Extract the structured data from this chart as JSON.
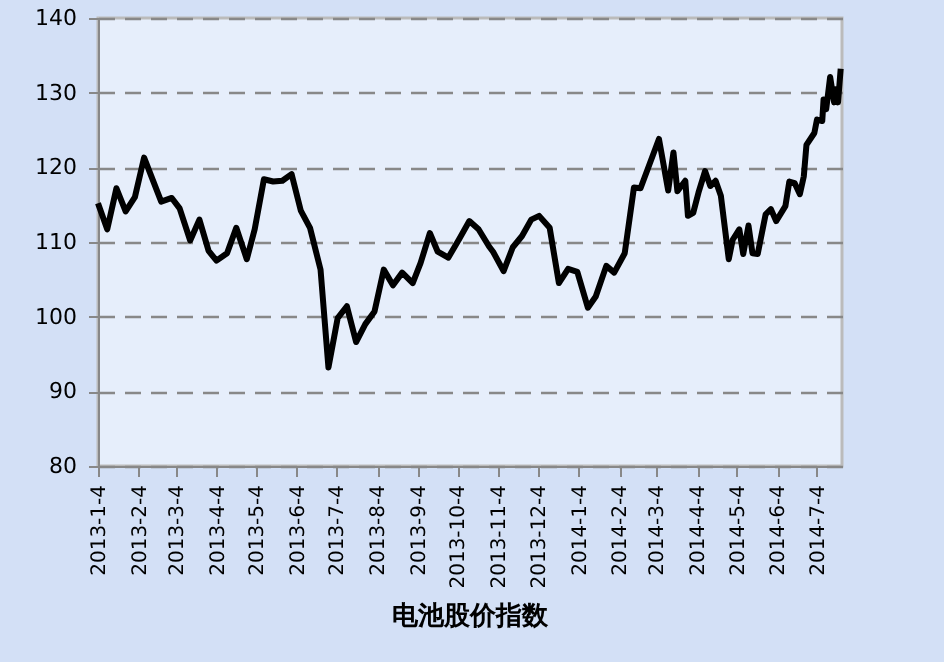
{
  "chart_data": {
    "type": "line",
    "title": "电池股价指数",
    "x": [
      "2013-01-04",
      "2013-01-11",
      "2013-01-18",
      "2013-01-25",
      "2013-02-01",
      "2013-02-08",
      "2013-02-21",
      "2013-03-01",
      "2013-03-07",
      "2013-03-15",
      "2013-03-22",
      "2013-03-29",
      "2013-04-04",
      "2013-04-12",
      "2013-04-19",
      "2013-04-27",
      "2013-05-03",
      "2013-05-10",
      "2013-05-17",
      "2013-05-24",
      "2013-05-31",
      "2013-06-07",
      "2013-06-14",
      "2013-06-22",
      "2013-06-28",
      "2013-07-05",
      "2013-07-12",
      "2013-07-19",
      "2013-07-26",
      "2013-08-02",
      "2013-08-09",
      "2013-08-16",
      "2013-08-23",
      "2013-08-31",
      "2013-09-06",
      "2013-09-13",
      "2013-09-19",
      "2013-09-27",
      "2013-10-05",
      "2013-10-13",
      "2013-10-20",
      "2013-10-28",
      "2013-10-31",
      "2013-11-08",
      "2013-11-15",
      "2013-11-22",
      "2013-11-29",
      "2013-12-05",
      "2013-12-13",
      "2013-12-20",
      "2013-12-27",
      "2014-01-03",
      "2014-01-11",
      "2014-01-17",
      "2014-01-25",
      "2014-01-31",
      "2014-02-08",
      "2014-02-15",
      "2014-02-20",
      "2014-03-06",
      "2014-03-13",
      "2014-03-17",
      "2014-03-20",
      "2014-03-26",
      "2014-03-28",
      "2014-04-01",
      "2014-04-05",
      "2014-04-10",
      "2014-04-14",
      "2014-04-18",
      "2014-04-22",
      "2014-04-28",
      "2014-05-01",
      "2014-05-06",
      "2014-05-09",
      "2014-05-13",
      "2014-05-16",
      "2014-05-20",
      "2014-05-26",
      "2014-05-30",
      "2014-06-03",
      "2014-06-10",
      "2014-06-13",
      "2014-06-17",
      "2014-06-21",
      "2014-06-24",
      "2014-06-26",
      "2014-07-02",
      "2014-07-04",
      "2014-07-08",
      "2014-07-09",
      "2014-07-11",
      "2014-07-14",
      "2014-07-17",
      "2014-07-19",
      "2014-07-20",
      "2014-07-22"
    ],
    "series": [
      {
        "color": "#000000",
        "values": [
          115.2,
          111.7,
          117.2,
          114.1,
          116.0,
          121.3,
          115.4,
          115.9,
          114.5,
          110.2,
          113.0,
          108.8,
          107.5,
          108.5,
          111.9,
          107.7,
          111.7,
          118.4,
          118.1,
          118.2,
          119.1,
          114.2,
          111.9,
          106.3,
          93.2,
          99.8,
          101.4,
          96.6,
          99.0,
          100.7,
          106.3,
          104.2,
          105.9,
          104.5,
          107.2,
          111.2,
          108.7,
          107.9,
          110.3,
          112.8,
          111.7,
          109.4,
          108.7,
          106.1,
          109.3,
          110.8,
          113.0,
          113.5,
          111.9,
          104.5,
          106.4,
          106.0,
          101.2,
          102.7,
          106.8,
          105.9,
          108.5,
          117.3,
          117.2,
          123.8,
          116.9,
          122.0,
          116.8,
          118.2,
          113.5,
          113.9,
          116.6,
          119.5,
          117.5,
          118.2,
          116.2,
          107.7,
          110.3,
          111.7,
          108.4,
          112.2,
          108.5,
          108.4,
          113.7,
          114.4,
          112.8,
          114.8,
          118.1,
          117.9,
          116.4,
          118.8,
          123.0,
          124.6,
          126.4,
          126.2,
          129.1,
          127.8,
          132.1,
          128.7,
          130.5,
          128.7,
          133.2
        ]
      }
    ],
    "xlim": [
      "2013-01-04",
      "2014-07-23"
    ],
    "xticks": [
      {
        "value": "2013-01-04",
        "label": "2013-1-4"
      },
      {
        "value": "2013-02-04",
        "label": "2013-2-4"
      },
      {
        "value": "2013-03-04",
        "label": "2013-3-4"
      },
      {
        "value": "2013-04-04",
        "label": "2013-4-4"
      },
      {
        "value": "2013-05-04",
        "label": "2013-5-4"
      },
      {
        "value": "2013-06-04",
        "label": "2013-6-4"
      },
      {
        "value": "2013-07-04",
        "label": "2013-7-4"
      },
      {
        "value": "2013-08-04",
        "label": "2013-8-4"
      },
      {
        "value": "2013-09-04",
        "label": "2013-9-4"
      },
      {
        "value": "2013-10-04",
        "label": "2013-10-4"
      },
      {
        "value": "2013-11-04",
        "label": "2013-11-4"
      },
      {
        "value": "2013-12-04",
        "label": "2013-12-4"
      },
      {
        "value": "2014-01-04",
        "label": "2014-1-4"
      },
      {
        "value": "2014-02-04",
        "label": "2014-2-4"
      },
      {
        "value": "2014-03-04",
        "label": "2014-3-4"
      },
      {
        "value": "2014-04-04",
        "label": "2014-4-4"
      },
      {
        "value": "2014-05-04",
        "label": "2014-5-4"
      },
      {
        "value": "2014-06-04",
        "label": "2014-6-4"
      },
      {
        "value": "2014-07-04",
        "label": "2014-7-4"
      }
    ],
    "ylim": [
      80,
      140
    ],
    "yticks": [
      80,
      90,
      100,
      110,
      120,
      130,
      140
    ],
    "grid": "y",
    "marker": "none",
    "line_style": "solid"
  }
}
